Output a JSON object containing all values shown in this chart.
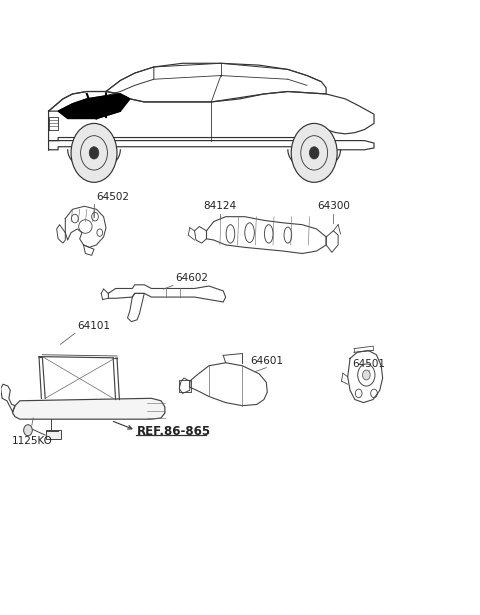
{
  "bg_color": "#ffffff",
  "fig_width": 4.8,
  "fig_height": 6.15,
  "dpi": 100,
  "label_fontsize": 7.5,
  "label_color": "#222222",
  "line_color": "#444444"
}
